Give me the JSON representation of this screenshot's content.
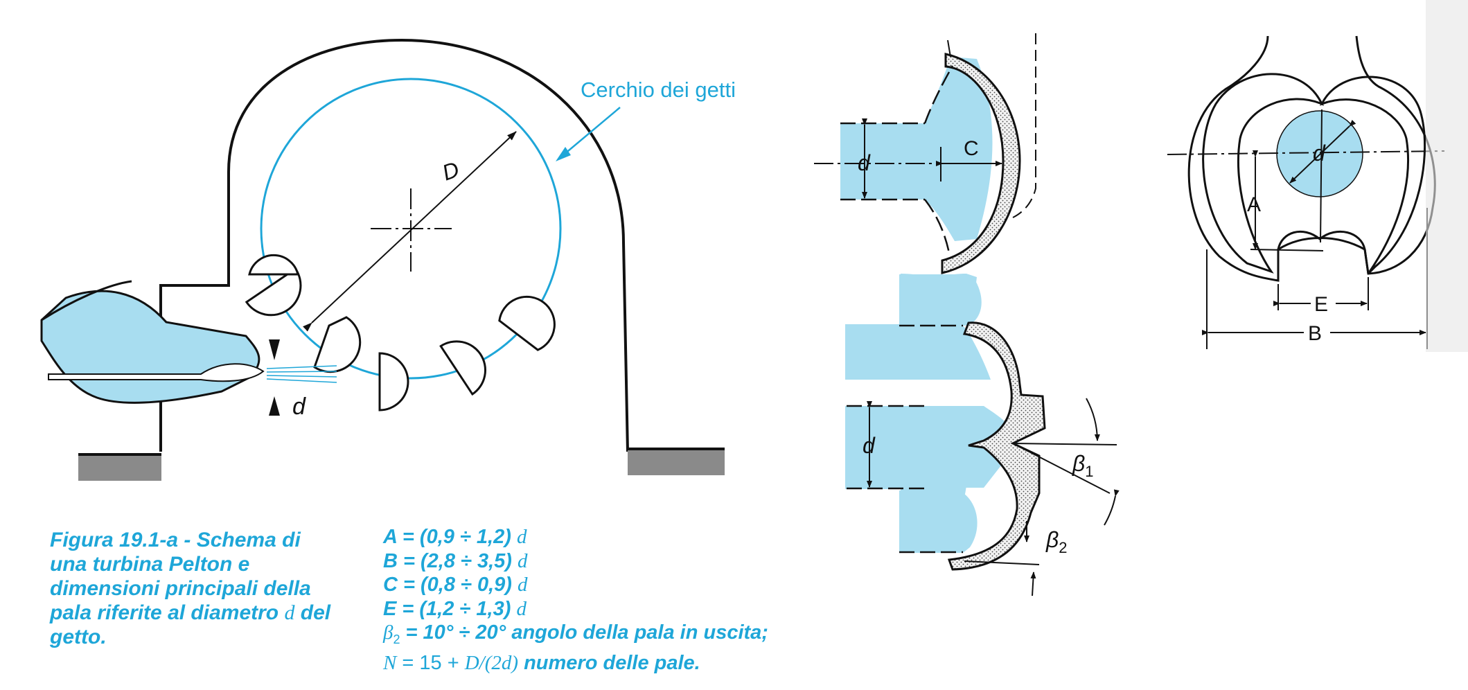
{
  "labels": {
    "jet_circle": "Cerchio dei getti",
    "D": "D",
    "d": "d",
    "A": "A",
    "B": "B",
    "C": "C",
    "E": "E",
    "beta1": "β",
    "beta1_sub": "1",
    "beta2": "β",
    "beta2_sub": "2"
  },
  "caption": {
    "line1": "Figura 19.1-a - Schema di",
    "line2": "una turbina Pelton e",
    "line3": "dimensioni principali della",
    "line4_a": "pala riferite al diametro ",
    "line4_var": "d",
    "line4_b": " del",
    "line5": "getto."
  },
  "formulas": {
    "A": {
      "lhs": "A = (0,9 ÷ 1,2) ",
      "var": "d"
    },
    "B": {
      "lhs": "B = (2,8 ÷ 3,5) ",
      "var": "d"
    },
    "C": {
      "lhs": "C = (0,8 ÷ 0,9) ",
      "var": "d"
    },
    "E": {
      "lhs": "E = (1,2 ÷ 1,3) ",
      "var": "d"
    },
    "beta2": {
      "sym": "β",
      "sub": "2",
      "rhs": " = 10° ÷ 20° ",
      "desc": "angolo della pala in uscita;"
    },
    "N": {
      "sym": "N",
      "eq": " = 15 + ",
      "expr": "D/(2d)",
      "desc": " numero delle pale."
    }
  },
  "colors": {
    "water": "#a8ddf0",
    "accent": "#1ea6d8",
    "line": "#111111",
    "ground": "#888888"
  }
}
